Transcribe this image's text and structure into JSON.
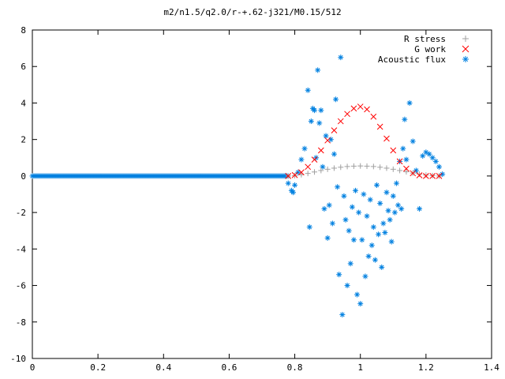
{
  "chart_data": {
    "type": "scatter",
    "title": "m2/n1.5/q2.0/r-+.62-j321/M0.15/512",
    "xlabel": "",
    "ylabel": "",
    "xlim": [
      0,
      1.4
    ],
    "ylim": [
      -10,
      8
    ],
    "x_ticks": [
      0,
      0.2,
      0.4,
      0.6,
      0.8,
      1,
      1.2,
      1.4
    ],
    "x_tick_labels": [
      "0",
      "0.2",
      "0.4",
      "0.6",
      "0.8",
      "1",
      "1.2",
      "1.4"
    ],
    "y_ticks": [
      -10,
      -8,
      -6,
      -4,
      -2,
      0,
      2,
      4,
      6,
      8
    ],
    "y_tick_labels": [
      "-10",
      "-8",
      "-6",
      "-4",
      "-2",
      "0",
      "2",
      "4",
      "6",
      "8"
    ],
    "grid": false,
    "legend_position": "top-right",
    "series": [
      {
        "name": "R stress",
        "marker": "plus",
        "color": "#a0a0a0",
        "x": [
          0.78,
          0.8,
          0.82,
          0.84,
          0.86,
          0.88,
          0.9,
          0.92,
          0.94,
          0.96,
          0.98,
          1.0,
          1.02,
          1.04,
          1.06,
          1.08,
          1.1,
          1.12,
          1.14,
          1.16,
          1.18,
          1.2,
          1.22,
          1.24
        ],
        "y": [
          0,
          0.02,
          0.07,
          0.14,
          0.22,
          0.3,
          0.37,
          0.43,
          0.48,
          0.52,
          0.54,
          0.55,
          0.54,
          0.52,
          0.48,
          0.43,
          0.37,
          0.3,
          0.23,
          0.16,
          0.1,
          0.05,
          0.02,
          0
        ]
      },
      {
        "name": "G work",
        "marker": "cross",
        "color": "#ff0000",
        "x": [
          0.78,
          0.8,
          0.82,
          0.84,
          0.86,
          0.88,
          0.9,
          0.92,
          0.94,
          0.96,
          0.98,
          1.0,
          1.02,
          1.04,
          1.06,
          1.08,
          1.1,
          1.12,
          1.14,
          1.16,
          1.18,
          1.2,
          1.22,
          1.24
        ],
        "y": [
          0,
          0.05,
          0.2,
          0.5,
          0.9,
          1.4,
          1.95,
          2.5,
          3.0,
          3.4,
          3.7,
          3.8,
          3.65,
          3.25,
          2.7,
          2.05,
          1.4,
          0.8,
          0.4,
          0.15,
          0.04,
          0,
          0,
          0
        ]
      },
      {
        "name": "Acoustic flux",
        "marker": "star",
        "color": "#0080e0",
        "baseline": {
          "from": 0,
          "to": 0.78,
          "value": 0
        },
        "x": [
          0.78,
          0.79,
          0.795,
          0.8,
          0.81,
          0.82,
          0.83,
          0.84,
          0.845,
          0.85,
          0.855,
          0.86,
          0.865,
          0.87,
          0.875,
          0.88,
          0.885,
          0.89,
          0.895,
          0.9,
          0.905,
          0.91,
          0.915,
          0.92,
          0.925,
          0.93,
          0.935,
          0.94,
          0.945,
          0.95,
          0.955,
          0.96,
          0.965,
          0.97,
          0.975,
          0.98,
          0.985,
          0.99,
          0.995,
          1.0,
          1.005,
          1.01,
          1.015,
          1.02,
          1.025,
          1.03,
          1.035,
          1.04,
          1.045,
          1.05,
          1.055,
          1.06,
          1.065,
          1.07,
          1.075,
          1.08,
          1.085,
          1.09,
          1.095,
          1.1,
          1.105,
          1.11,
          1.115,
          1.12,
          1.125,
          1.13,
          1.135,
          1.14,
          1.15,
          1.16,
          1.17,
          1.18,
          1.19,
          1.2,
          1.21,
          1.22,
          1.23,
          1.24,
          1.25
        ],
        "y": [
          -0.4,
          -0.8,
          -0.9,
          -0.5,
          0.2,
          0.9,
          1.5,
          4.7,
          -2.8,
          3.0,
          3.7,
          3.6,
          1.0,
          5.8,
          2.9,
          3.6,
          0.5,
          -1.8,
          2.2,
          -3.4,
          -1.6,
          2.0,
          -2.6,
          1.2,
          4.2,
          -0.6,
          -5.4,
          6.5,
          -7.6,
          -1.1,
          -2.4,
          -6.0,
          -3.0,
          -4.8,
          -1.7,
          -3.5,
          -0.8,
          -6.5,
          -2.0,
          -7.0,
          -3.5,
          -1.0,
          -5.5,
          -2.2,
          -4.4,
          -1.3,
          -3.8,
          -2.8,
          -4.6,
          -0.5,
          -3.2,
          -1.5,
          -5.0,
          -2.6,
          -3.1,
          -0.9,
          -1.9,
          -2.4,
          -3.6,
          -1.1,
          -2.0,
          -0.4,
          -1.6,
          0.8,
          -1.8,
          1.5,
          3.1,
          0.9,
          4.0,
          1.9,
          0.3,
          -1.8,
          1.1,
          1.3,
          1.2,
          1.0,
          0.8,
          0.5,
          0.1
        ]
      }
    ]
  }
}
